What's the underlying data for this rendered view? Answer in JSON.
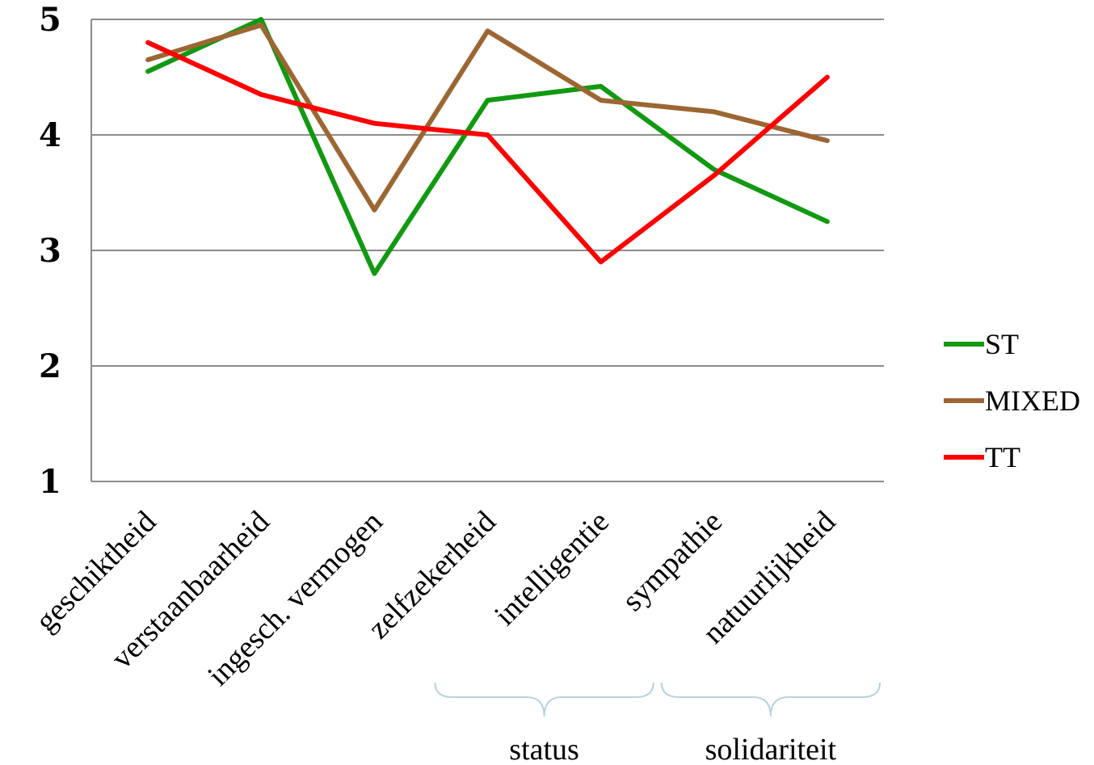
{
  "chart_data": {
    "type": "line",
    "title": "",
    "xlabel": "",
    "ylabel": "",
    "ylim": [
      1,
      5
    ],
    "yticks": [
      "1",
      "2",
      "3",
      "4",
      "5"
    ],
    "grid": true,
    "legend_position": "right",
    "categories": [
      "geschiktheid",
      "verstaanbaarheid",
      "ingesch. vermogen",
      "zelfzekerheid",
      "intelligentie",
      "sympathie",
      "natuurlijkheid"
    ],
    "series": [
      {
        "name": "ST",
        "color": "#119911",
        "values": [
          4.55,
          5.0,
          2.8,
          4.3,
          4.42,
          3.7,
          3.25
        ]
      },
      {
        "name": "MIXED",
        "color": "#9C6633",
        "values": [
          4.65,
          4.95,
          3.35,
          4.9,
          4.3,
          4.2,
          3.95
        ]
      },
      {
        "name": "TT",
        "color": "#FF0000",
        "values": [
          4.8,
          4.35,
          4.1,
          4.0,
          2.9,
          3.65,
          4.5
        ]
      }
    ],
    "category_groups": [
      {
        "label": "status",
        "from": 3,
        "to": 4
      },
      {
        "label": "solidariteit",
        "from": 5,
        "to": 6
      }
    ]
  }
}
